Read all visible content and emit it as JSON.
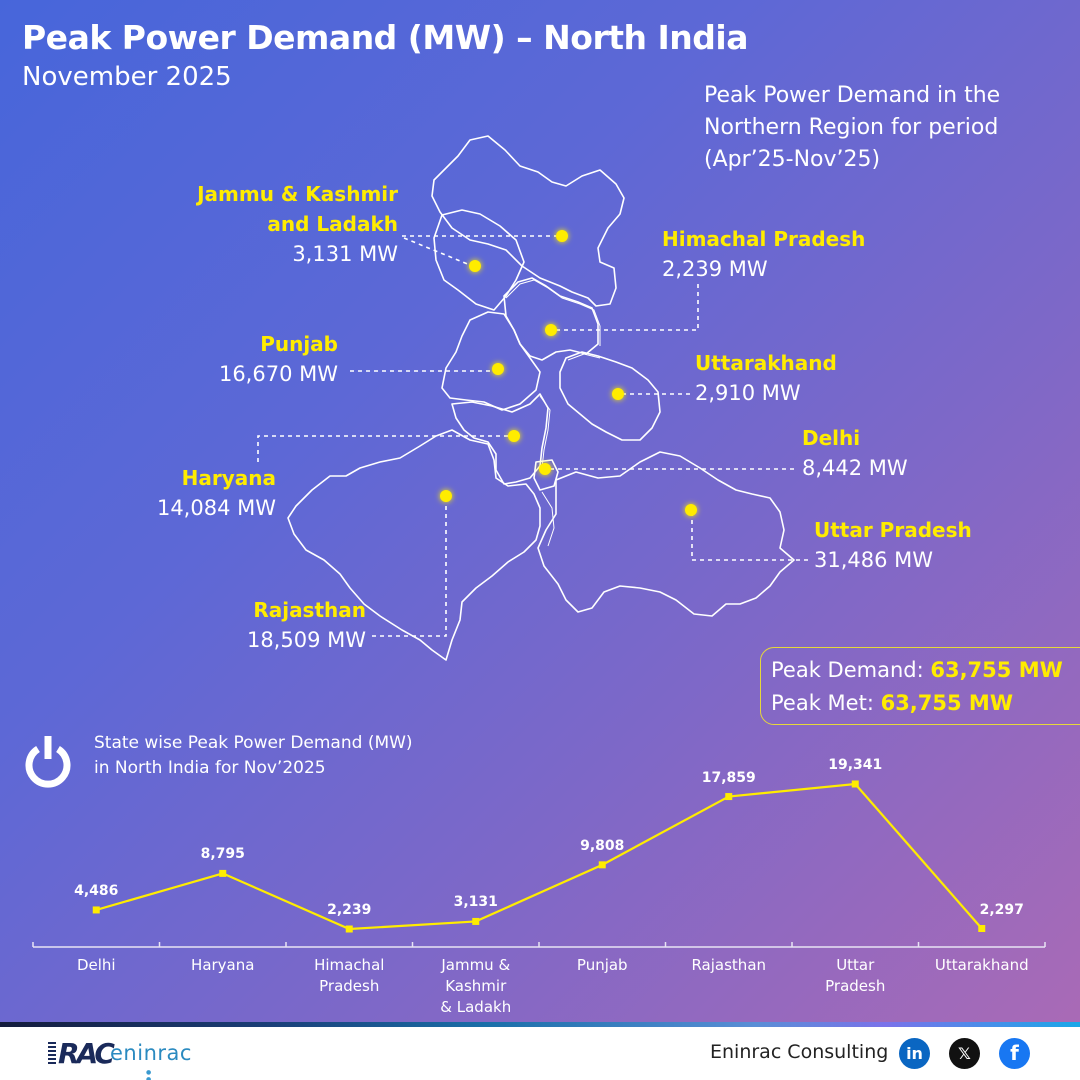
{
  "header": {
    "title": "Peak Power Demand (MW) – North India",
    "subtitle": "November 2025"
  },
  "map": {
    "caption_lines": [
      "Peak Power Demand in the",
      "Northern Region for period",
      "(Apr’25-Nov’25)"
    ],
    "marker_color": "#ffec00",
    "states": [
      {
        "name_line1": "Jammu & Kashmir",
        "name_line2": "and Ladakh",
        "value": "3,131 MW"
      },
      {
        "name": "Himachal Pradesh",
        "value": "2,239 MW"
      },
      {
        "name": "Punjab",
        "value": "16,670 MW"
      },
      {
        "name": "Uttarakhand",
        "value": "2,910 MW"
      },
      {
        "name": "Haryana",
        "value": "14,084 MW"
      },
      {
        "name": "Delhi",
        "value": "8,442 MW"
      },
      {
        "name": "Uttar Pradesh",
        "value": "31,486 MW"
      },
      {
        "name": "Rajasthan",
        "value": "18,509 MW"
      }
    ]
  },
  "summary": {
    "peak_demand_label": "Peak Demand:",
    "peak_demand_value": "63,755 MW",
    "peak_met_label": "Peak Met:",
    "peak_met_value": "63,755 MW"
  },
  "chart": {
    "icon": "power-icon",
    "title_line1": "State wise Peak Power Demand (MW)",
    "title_line2": "in North India for Nov’2025"
  },
  "chart_data": {
    "type": "line",
    "title": "State wise Peak Power Demand (MW) in North India for Nov’2025",
    "xlabel": "",
    "ylabel": "",
    "categories": [
      "Delhi",
      "Haryana",
      "Himachal Pradesh",
      "Jammu & Kashmir & Ladakh",
      "Punjab",
      "Rajasthan",
      "Uttar Pradesh",
      "Uttarakhand"
    ],
    "category_lines": [
      [
        "Delhi"
      ],
      [
        "Haryana"
      ],
      [
        "Himachal",
        "Pradesh"
      ],
      [
        "Jammu &",
        "Kashmir",
        "& Ladakh"
      ],
      [
        "Punjab"
      ],
      [
        "Rajasthan"
      ],
      [
        "Uttar",
        "Pradesh"
      ],
      [
        "Uttarakhand"
      ]
    ],
    "values": [
      4486,
      8795,
      2239,
      3131,
      9808,
      17859,
      19341,
      2297
    ],
    "value_labels": [
      "4,486",
      "8,795",
      "2,239",
      "3,131",
      "9,808",
      "17,859",
      "19,341",
      "2,297"
    ],
    "line_color": "#ffec00",
    "grid": false,
    "ylim": [
      0,
      20000
    ],
    "legend": "none"
  },
  "footer": {
    "logo_rac": "RAC",
    "logo_text": "eninrac",
    "logo_dots": "● ● ● ● ● ● ●",
    "company": "Eninrac Consulting",
    "social": [
      {
        "icon": "linkedin-icon",
        "glyph": "in"
      },
      {
        "icon": "x-icon",
        "glyph": "𝕏"
      },
      {
        "icon": "facebook-icon",
        "glyph": "f"
      }
    ]
  }
}
